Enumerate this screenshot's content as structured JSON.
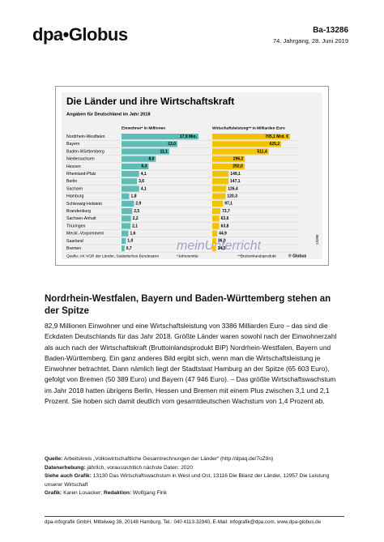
{
  "header": {
    "logo": "dpa•Globus",
    "code": "Ba-13286",
    "issue": "74. Jahrgang, 28. Juni 2019"
  },
  "chart_data": {
    "type": "bar",
    "title": "Die Länder und ihre Wirtschaftskraft",
    "subtitle": "Angaben für Deutschland im Jahr 2018",
    "categories": [
      "Nordrhein-Westfalen",
      "Bayern",
      "Baden-Württemberg",
      "Niedersachsen",
      "Hessen",
      "Rheinland-Pfalz",
      "Berlin",
      "Sachsen",
      "Hamburg",
      "Schleswig-Holstein",
      "Brandenburg",
      "Sachsen-Anhalt",
      "Thüringen",
      "Meckl.-Vorpommern",
      "Saarland",
      "Bremen"
    ],
    "series": [
      {
        "name": "Einwohner* in Millionen",
        "color": "#5dbdb6",
        "values": [
          17.9,
          13.0,
          11.1,
          8.0,
          6.3,
          4.1,
          3.6,
          4.1,
          1.8,
          2.9,
          2.5,
          2.2,
          2.1,
          1.6,
          1.0,
          0.7
        ],
        "value_labels": [
          "17,9 Mio.",
          "13,0",
          "11,1",
          "8,0",
          "6,3",
          "4,1",
          "3,6",
          "4,1",
          "1,8",
          "2,9",
          "2,5",
          "2,2",
          "2,1",
          "1,6",
          "1,0",
          "0,7"
        ]
      },
      {
        "name": "Wirtschaftsleistung** in Milliarden Euro",
        "color": "#f4c300",
        "values": [
          705.1,
          625.2,
          511.4,
          296.2,
          292.0,
          149.1,
          147.1,
          126.4,
          120.3,
          97.1,
          73.7,
          63.6,
          63.8,
          44.9,
          36.0,
          34.3
        ],
        "value_labels": [
          "705,1 Mrd. €",
          "625,2",
          "511,4",
          "296,2",
          "292,0",
          "149,1",
          "147,1",
          "126,4",
          "120,3",
          "97,1",
          "73,7",
          "63,6",
          "63,8",
          "44,9",
          "36,0",
          "34,3"
        ]
      }
    ],
    "source": "Quelle: AK VGR der Länder, Statistisches Bundesamt",
    "notes": [
      "*Jahresmitte",
      "**Bruttoinlandsprodukt"
    ],
    "credit": "© Globus",
    "number": "13286"
  },
  "watermark": "meinUnterricht",
  "article": {
    "heading": "Nordrhein-Westfalen, Bayern und Baden-Württemberg stehen an der Spitze",
    "body": "82,9 Millionen Einwohner und eine Wirtschaftsleistung von 3386 Milliarden Euro – das sind die Eckdaten Deutschlands für das Jahr 2018. Größte Länder waren sowohl nach der Einwohnerzahl als auch nach der Wirtschaftskraft (Bruttoinlandsprodukt BIP) Nordrhein-Westfalen, Bayern und Baden-Württemberg. Ein ganz anderes Bild ergibt sich, wenn man die Wirtschaftsleistung je Einwohner betrachtet. Dann nämlich liegt der Stadtstaat Hamburg an der Spitze (65 603 Euro), gefolgt von Bremen (50 389 Euro) und Bayern (47 946 Euro). – Das größte Wirtschaftswachstum im Jahr 2018 hatten übrigens Berlin, Hessen und Bremen mit einem Plus zwischen 3,1 und 2,1 Prozent. Sie hoben sich damit deutlich vom gesamtdeutschen Wachstum von 1,4 Prozent ab."
  },
  "info": [
    {
      "label": "Quelle:",
      "text": "Arbeitskreis „Volkswirtschaftliche Gesamtrechnungen der Länder“ (http://dpaq.de/7oZ9n)"
    },
    {
      "label": "Datenerhebung:",
      "text": "jährlich, voraussichtlich nächste Daten: 2020"
    },
    {
      "label": "Siehe auch Grafik:",
      "text": "13130 Das Wirtschaftswachstum in West und Ost, 13116 Die Bilanz der Länder, 12957 Die Leistung unserer Wirtschaft"
    },
    {
      "label": "Grafik:",
      "text": "Karen Losacker;",
      "label2": "Redaktion:",
      "text2": "Wolfgang Fink"
    }
  ],
  "footer": "dpa-infografik GmbH, Mittelweg 38, 20148 Hamburg, Tel.: 040 4113-32940, E-Mail: infografik@dpa.com, www.dpa-globus.de"
}
